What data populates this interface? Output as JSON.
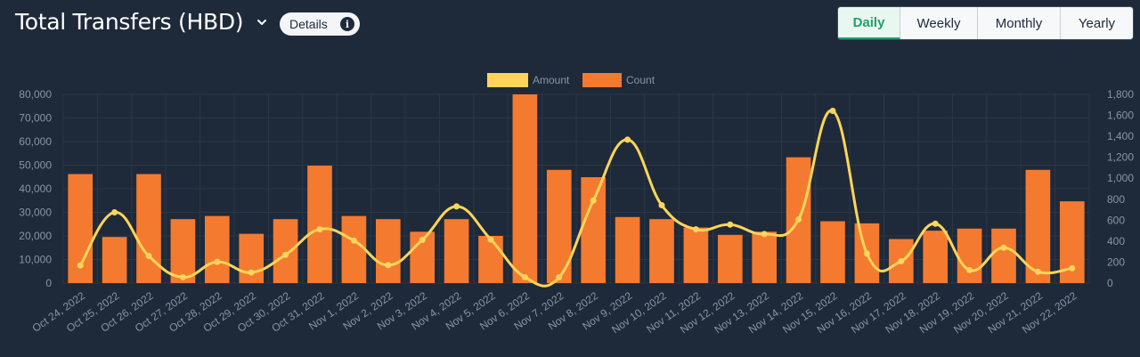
{
  "header": {
    "title": "Total Transfers (HBD)",
    "dropdown_icon": "chevron-down-icon",
    "details_label": "Details",
    "details_icon": "info-icon"
  },
  "tabs": [
    {
      "label": "Daily",
      "active": true
    },
    {
      "label": "Weekly",
      "active": false
    },
    {
      "label": "Monthly",
      "active": false
    },
    {
      "label": "Yearly",
      "active": false
    }
  ],
  "colors": {
    "background": "#1e2a3a",
    "amount": "#fdd55a",
    "count": "#f47a30",
    "active_tab": "#22a06b"
  },
  "chart_data": {
    "type": "bar",
    "legend_position": "top-center",
    "grid": true,
    "categories": [
      "Oct 24, 2022",
      "Oct 25, 2022",
      "Oct 26, 2022",
      "Oct 27, 2022",
      "Oct 28, 2022",
      "Oct 29, 2022",
      "Oct 30, 2022",
      "Oct 31, 2022",
      "Nov 1, 2022",
      "Nov 2, 2022",
      "Nov 3, 2022",
      "Nov 4, 2022",
      "Nov 5, 2022",
      "Nov 6, 2022",
      "Nov 7, 2022",
      "Nov 8, 2022",
      "Nov 9, 2022",
      "Nov 10, 2022",
      "Nov 11, 2022",
      "Nov 12, 2022",
      "Nov 13, 2022",
      "Nov 14, 2022",
      "Nov 15, 2022",
      "Nov 16, 2022",
      "Nov 17, 2022",
      "Nov 18, 2022",
      "Nov 19, 2022",
      "Nov 20, 2022",
      "Nov 21, 2022",
      "Nov 22, 2022"
    ],
    "left_axis": {
      "ylim": [
        0,
        80000
      ],
      "ticks": [
        "0",
        "10,000",
        "20,000",
        "30,000",
        "40,000",
        "50,000",
        "60,000",
        "70,000",
        "80,000"
      ]
    },
    "right_axis": {
      "ylim": [
        0,
        1800
      ],
      "ticks": [
        "0",
        "200",
        "400",
        "600",
        "800",
        "1,000",
        "1,200",
        "1,400",
        "1,600",
        "1,800"
      ]
    },
    "series": [
      {
        "name": "Amount",
        "type": "line",
        "axis": "left",
        "smooth": true,
        "values": [
          7500,
          30000,
          11500,
          2500,
          9000,
          4500,
          12000,
          22800,
          18000,
          7600,
          18300,
          32500,
          18500,
          2500,
          2500,
          35000,
          60800,
          33000,
          22800,
          24800,
          20800,
          27000,
          73000,
          12500,
          9300,
          25200,
          5500,
          15000,
          4800,
          6300
        ]
      },
      {
        "name": "Count",
        "type": "bar",
        "axis": "right",
        "values": [
          1040,
          440,
          1040,
          610,
          640,
          470,
          610,
          1120,
          640,
          610,
          490,
          610,
          450,
          1800,
          1080,
          1010,
          630,
          610,
          530,
          460,
          490,
          1200,
          590,
          570,
          420,
          500,
          520,
          520,
          1080,
          780
        ]
      }
    ]
  }
}
